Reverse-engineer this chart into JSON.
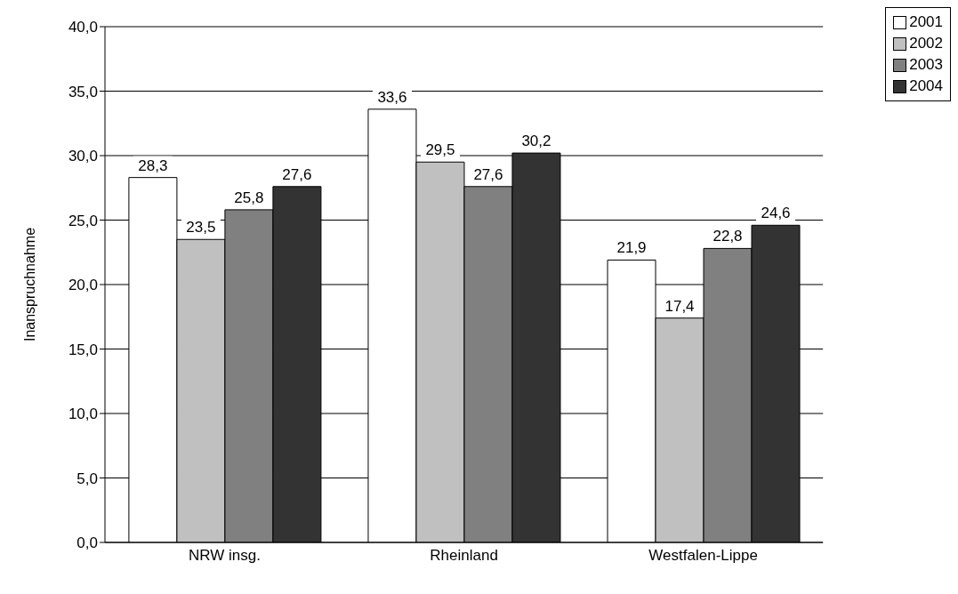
{
  "chart_data": {
    "type": "bar",
    "ylabel": "Inanspruchnahme",
    "categories": [
      "NRW insg.",
      "Rheinland",
      "Westfalen-Lippe"
    ],
    "series": [
      {
        "name": "2001",
        "color": "#ffffff",
        "values": [
          28.3,
          33.6,
          21.9
        ],
        "value_labels": [
          "28,3",
          "33,6",
          "21,9"
        ]
      },
      {
        "name": "2002",
        "color": "#c0c0c0",
        "values": [
          23.5,
          29.5,
          17.4
        ],
        "value_labels": [
          "23,5",
          "29,5",
          "17,4"
        ]
      },
      {
        "name": "2003",
        "color": "#808080",
        "values": [
          25.8,
          27.6,
          22.8
        ],
        "value_labels": [
          "25,8",
          "27,6",
          "22,8"
        ]
      },
      {
        "name": "2004",
        "color": "#333333",
        "values": [
          27.6,
          30.2,
          24.6
        ],
        "value_labels": [
          "27,6",
          "30,2",
          "24,6"
        ]
      }
    ],
    "ylim": [
      0,
      40
    ],
    "yticks": [
      {
        "value": 0,
        "label": "0,0"
      },
      {
        "value": 5,
        "label": "5,0"
      },
      {
        "value": 10,
        "label": "10,0"
      },
      {
        "value": 15,
        "label": "15,0"
      },
      {
        "value": 20,
        "label": "20,0"
      },
      {
        "value": 25,
        "label": "25,0"
      },
      {
        "value": 30,
        "label": "30,0"
      },
      {
        "value": 35,
        "label": "35,0"
      },
      {
        "value": 40,
        "label": "40,0"
      }
    ],
    "grid": "y",
    "legend": "top right"
  }
}
